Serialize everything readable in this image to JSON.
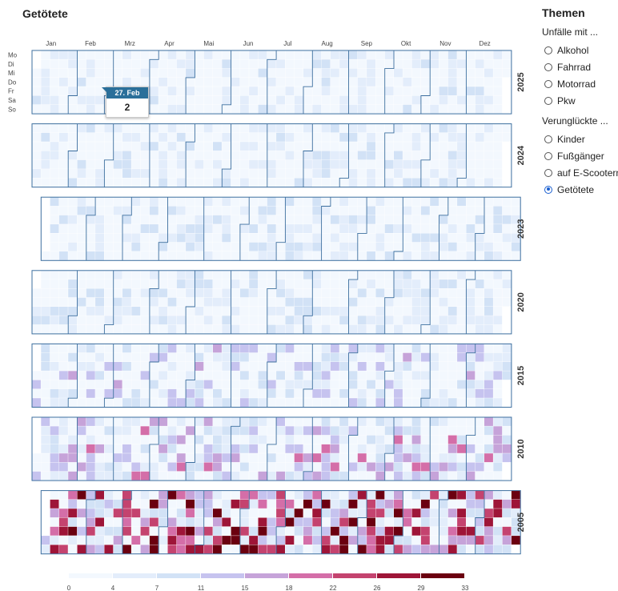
{
  "title": "Getötete",
  "sidebar": {
    "title": "Themen",
    "groups": [
      {
        "label": "Unfälle mit ...",
        "options": [
          "Alkohol",
          "Fahrrad",
          "Motorrad",
          "Pkw"
        ]
      },
      {
        "label": "Verunglückte ...",
        "options": [
          "Kinder",
          "Fußgänger",
          "auf E-Scootern",
          "Getötete"
        ]
      }
    ],
    "selected": "Getötete"
  },
  "tooltip": {
    "date": "27. Feb",
    "value": "2"
  },
  "colors": {
    "scale": [
      "#f3f8fe",
      "#e3edfb",
      "#d2e2f6",
      "#c6c3ef",
      "#c6a3d9",
      "#d46ea8",
      "#c4436f",
      "#9e1538",
      "#6b0010"
    ],
    "outline": "#3d6f9f",
    "tooltip_header": "#2a6f9a",
    "radio_selected": "#1a5fd0"
  },
  "chart_data": {
    "type": "heatmap",
    "title": "Getötete",
    "months": [
      "Jan",
      "Feb",
      "Mrz",
      "Apr",
      "Mai",
      "Jun",
      "Jul",
      "Aug",
      "Sep",
      "Okt",
      "Nov",
      "Dez"
    ],
    "weekdays": [
      "Mo",
      "Di",
      "Mi",
      "Do",
      "Fr",
      "Sa",
      "So"
    ],
    "years": [
      2025,
      2024,
      2023,
      2020,
      2015,
      2010,
      2005
    ],
    "color_scale": {
      "thresholds": [
        0,
        4,
        7,
        11,
        15,
        18,
        22,
        26,
        29,
        33
      ],
      "tick_labels": [
        "0",
        "4",
        "7",
        "11",
        "15",
        "18",
        "22",
        "26",
        "29",
        "33"
      ]
    },
    "highlight": {
      "year": 2025,
      "date": "27. Feb",
      "value": 2
    }
  }
}
